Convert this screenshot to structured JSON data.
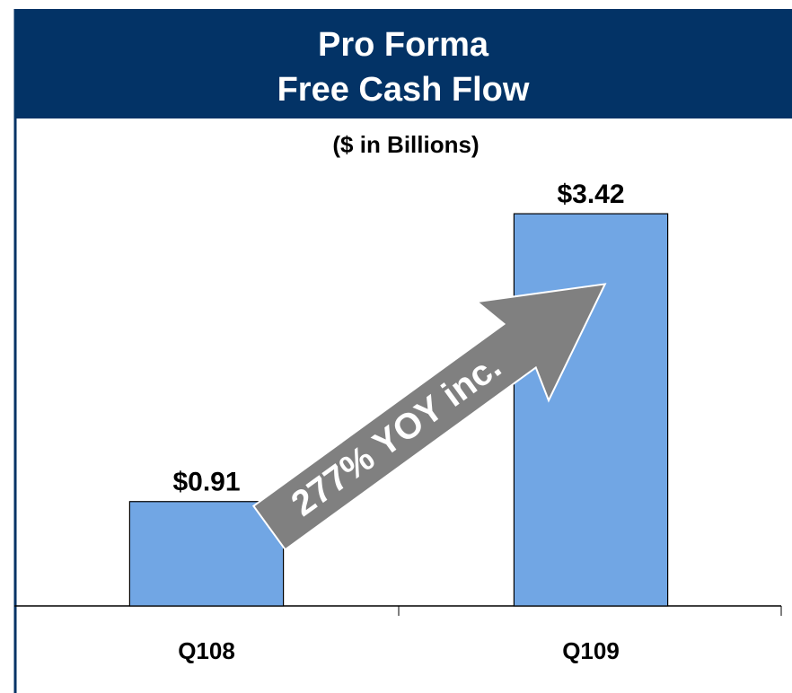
{
  "chart_data": {
    "type": "bar",
    "title": [
      "Pro Forma",
      "Free Cash Flow"
    ],
    "subtitle": "($ in Billions)",
    "annotation": "277% YOY inc.",
    "categories": [
      "Q108",
      "Q109"
    ],
    "values": [
      0.91,
      3.42
    ],
    "value_labels": [
      "$0.91",
      "$3.42"
    ],
    "color": "#71a6e4",
    "ylim": [
      0,
      4
    ]
  }
}
